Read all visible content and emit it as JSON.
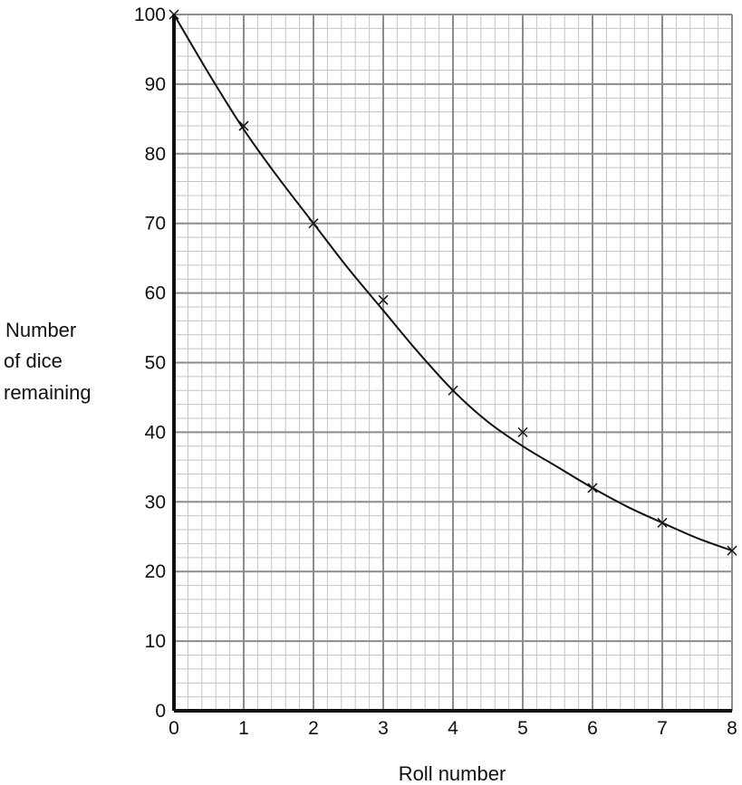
{
  "chart_data": {
    "type": "scatter",
    "title": "",
    "xlabel": "Roll number",
    "ylabel_lines": [
      "Number",
      "of dice",
      "remaining"
    ],
    "xlim": [
      0,
      8
    ],
    "ylim": [
      0,
      100
    ],
    "x_ticks": [
      0,
      1,
      2,
      3,
      4,
      5,
      6,
      7,
      8
    ],
    "y_ticks": [
      0,
      10,
      20,
      30,
      40,
      50,
      60,
      70,
      80,
      90,
      100
    ],
    "grid": true,
    "minor_grid_per_major_x": 5,
    "minor_grid_per_major_y": 5,
    "marker": "x",
    "series": [
      {
        "x": [
          0,
          1,
          2,
          3,
          4,
          5,
          6,
          7,
          8
        ],
        "y": [
          100,
          84,
          70,
          59,
          46,
          40,
          32,
          27,
          23
        ]
      }
    ],
    "fit_curve": {
      "type": "smooth",
      "x": [
        0,
        0.5,
        1,
        1.5,
        2,
        2.5,
        3,
        3.5,
        4,
        4.5,
        5,
        5.5,
        6,
        6.5,
        7,
        7.5,
        8
      ],
      "y": [
        100,
        91.5,
        83.5,
        76.5,
        70,
        63.5,
        57.5,
        51.5,
        46,
        41.5,
        38,
        35,
        32,
        29.3,
        27,
        24.8,
        23
      ]
    },
    "colors": {
      "ink": "#111111",
      "major_grid": "#8c8c8c",
      "minor_grid": "#c4c4c4"
    }
  }
}
